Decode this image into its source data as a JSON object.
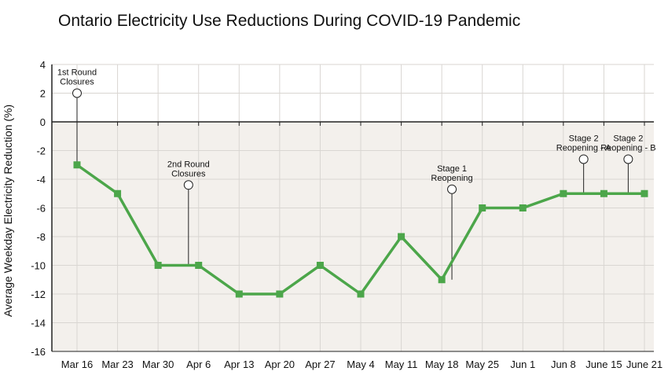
{
  "chart_data": {
    "type": "line",
    "title": "Ontario Electricity Use Reductions During COVID-19 Pandemic",
    "xlabel": "",
    "ylabel": "Average Weekday Electricity  Reduction (%)",
    "categories": [
      "Mar 16",
      "Mar 23",
      "Mar 30",
      "Apr 6",
      "Apr 13",
      "Apr 20",
      "Apr 27",
      "May 4",
      "May 11",
      "May 18",
      "May 25",
      "Jun 1",
      "Jun 8",
      "June 15",
      "June 21"
    ],
    "series": [
      {
        "values": [
          -3,
          -5,
          -10,
          -10,
          -12,
          -12,
          -10,
          -12,
          -8,
          -11,
          -6,
          -6,
          -5,
          -5,
          -5
        ]
      }
    ],
    "ylim": [
      -16,
      4
    ],
    "yticks": [
      4,
      2,
      0,
      -2,
      -4,
      -6,
      -8,
      -10,
      -12,
      -14,
      -16
    ],
    "grid": true,
    "shading": "below-zero",
    "annotations": [
      {
        "lines": [
          "1st Round",
          "Closures"
        ],
        "x_index": 0,
        "marker_y": 2,
        "point_y": -3
      },
      {
        "lines": [
          "2nd Round",
          "Closures"
        ],
        "x_index": 2.75,
        "marker_y": -4.4,
        "point_y": -10
      },
      {
        "lines": [
          "Stage 1",
          "Reopening"
        ],
        "x_index": 9.25,
        "marker_y": -4.7,
        "point_y": -11
      },
      {
        "lines": [
          "Stage 2",
          "Reopening - A"
        ],
        "x_index": 12.5,
        "marker_y": -2.6,
        "point_y": -5
      },
      {
        "lines": [
          "Stage 2",
          "Reopening - B"
        ],
        "x_index": 13.6,
        "marker_y": -2.6,
        "point_y": -5
      }
    ],
    "colors": {
      "line": "#4ca64a",
      "shade": "#f3f0ec",
      "grid": "#d9d6d2",
      "axis": "#222222"
    }
  }
}
